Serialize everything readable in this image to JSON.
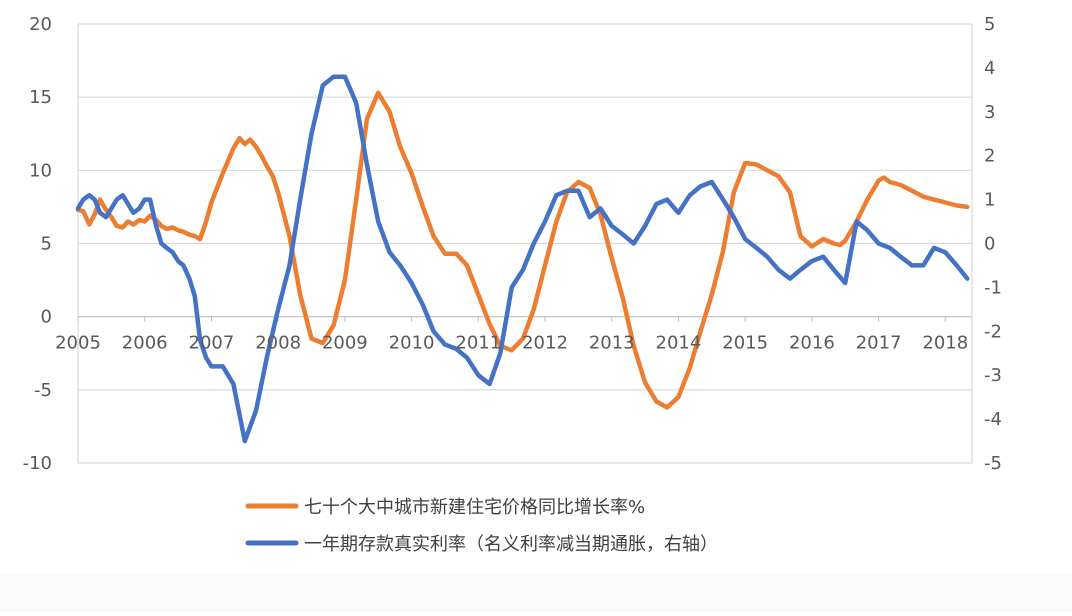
{
  "chart_data": {
    "type": "line",
    "title": "",
    "xlabel": "",
    "ylabel": "",
    "x_ticks": [
      "2005",
      "2006",
      "2007",
      "2008",
      "2009",
      "2010",
      "2011",
      "2012",
      "2013",
      "2014",
      "2015",
      "2016",
      "2017",
      "2018"
    ],
    "x_range": [
      2005.0,
      2018.4
    ],
    "y_left": {
      "range": [
        -10,
        20
      ],
      "ticks": [
        "-10",
        "-5",
        "0",
        "5",
        "10",
        "15",
        "20"
      ]
    },
    "y_right": {
      "range": [
        -5,
        5
      ],
      "ticks": [
        "-5",
        "-4",
        "-3",
        "-2",
        "-1",
        "0",
        "1",
        "2",
        "3",
        "4",
        "5"
      ]
    },
    "grid": "horizontal",
    "legend": "bottom",
    "series": [
      {
        "name": "七十个大中城市新建住宅价格同比增长率%",
        "axis": "left",
        "color": "#ED7D31",
        "x": [
          2005.0,
          2005.08,
          2005.17,
          2005.25,
          2005.33,
          2005.42,
          2005.5,
          2005.58,
          2005.67,
          2005.75,
          2005.83,
          2005.92,
          2006.0,
          2006.08,
          2006.17,
          2006.25,
          2006.33,
          2006.42,
          2006.5,
          2006.58,
          2006.67,
          2006.75,
          2006.83,
          2006.92,
          2007.0,
          2007.17,
          2007.33,
          2007.42,
          2007.5,
          2007.58,
          2007.67,
          2007.75,
          2007.83,
          2007.92,
          2008.0,
          2008.17,
          2008.33,
          2008.5,
          2008.67,
          2008.83,
          2009.0,
          2009.17,
          2009.33,
          2009.5,
          2009.67,
          2009.75,
          2009.83,
          2010.0,
          2010.17,
          2010.33,
          2010.5,
          2010.67,
          2010.83,
          2011.0,
          2011.17,
          2011.33,
          2011.5,
          2011.67,
          2011.83,
          2012.0,
          2012.17,
          2012.33,
          2012.5,
          2012.67,
          2012.83,
          2013.0,
          2013.17,
          2013.33,
          2013.5,
          2013.67,
          2013.83,
          2014.0,
          2014.17,
          2014.33,
          2014.5,
          2014.67,
          2014.75,
          2014.83,
          2015.0,
          2015.17,
          2015.33,
          2015.5,
          2015.67,
          2015.83,
          2016.0,
          2016.17,
          2016.33,
          2016.42,
          2016.5,
          2016.67,
          2016.83,
          2017.0,
          2017.08,
          2017.17,
          2017.33,
          2017.5,
          2017.67,
          2017.83,
          2018.0,
          2018.17,
          2018.33
        ],
        "values": [
          7.3,
          7.2,
          6.3,
          7.0,
          8.0,
          7.3,
          6.8,
          6.2,
          6.1,
          6.5,
          6.3,
          6.6,
          6.5,
          6.9,
          6.6,
          6.2,
          6.0,
          6.1,
          5.9,
          5.8,
          5.6,
          5.5,
          5.3,
          6.5,
          7.8,
          9.8,
          11.5,
          12.2,
          11.8,
          12.1,
          11.6,
          11.0,
          10.3,
          9.6,
          8.5,
          5.5,
          1.5,
          -1.5,
          -1.8,
          -0.6,
          2.5,
          8.0,
          13.5,
          15.3,
          14.0,
          12.8,
          11.6,
          9.8,
          7.5,
          5.5,
          4.3,
          4.3,
          3.5,
          1.5,
          -0.5,
          -2.0,
          -2.3,
          -1.5,
          0.5,
          3.5,
          6.5,
          8.5,
          9.2,
          8.8,
          7.0,
          4.0,
          1.2,
          -2.0,
          -4.5,
          -5.8,
          -6.2,
          -5.5,
          -3.5,
          -1.0,
          1.5,
          4.5,
          6.5,
          8.5,
          10.5,
          10.4,
          10.0,
          9.6,
          8.5,
          5.5,
          4.8,
          5.3,
          5.0,
          4.9,
          5.2,
          6.5,
          8.0,
          9.3,
          9.5,
          9.2,
          9.0,
          8.6,
          8.2,
          8.0,
          7.8,
          7.6,
          7.5
        ],
        "values_note": ""
      },
      {
        "name": "一年期存款真实利率（名义利率减当期通胀，右轴）",
        "axis": "right",
        "color": "#4472C4",
        "x": [
          2005.0,
          2005.08,
          2005.17,
          2005.25,
          2005.33,
          2005.42,
          2005.5,
          2005.58,
          2005.67,
          2005.75,
          2005.83,
          2005.92,
          2006.0,
          2006.08,
          2006.17,
          2006.25,
          2006.33,
          2006.42,
          2006.5,
          2006.58,
          2006.67,
          2006.75,
          2006.83,
          2006.92,
          2007.0,
          2007.17,
          2007.33,
          2007.5,
          2007.67,
          2007.83,
          2008.0,
          2008.17,
          2008.33,
          2008.5,
          2008.67,
          2008.83,
          2009.0,
          2009.17,
          2009.33,
          2009.5,
          2009.67,
          2009.83,
          2010.0,
          2010.17,
          2010.33,
          2010.5,
          2010.67,
          2010.83,
          2011.0,
          2011.17,
          2011.33,
          2011.5,
          2011.67,
          2011.83,
          2012.0,
          2012.17,
          2012.33,
          2012.5,
          2012.67,
          2012.83,
          2013.0,
          2013.17,
          2013.33,
          2013.5,
          2013.67,
          2013.83,
          2014.0,
          2014.17,
          2014.33,
          2014.5,
          2014.67,
          2014.83,
          2015.0,
          2015.17,
          2015.33,
          2015.5,
          2015.67,
          2015.83,
          2016.0,
          2016.17,
          2016.33,
          2016.5,
          2016.67,
          2016.83,
          2017.0,
          2017.17,
          2017.33,
          2017.5,
          2017.67,
          2017.83,
          2018.0,
          2018.17,
          2018.33
        ],
        "values": [
          0.8,
          1.0,
          1.1,
          1.0,
          0.7,
          0.6,
          0.8,
          1.0,
          1.1,
          0.9,
          0.7,
          0.8,
          1.0,
          1.0,
          0.4,
          0.0,
          -0.1,
          -0.2,
          -0.4,
          -0.5,
          -0.8,
          -1.2,
          -2.2,
          -2.6,
          -2.8,
          -2.8,
          -3.2,
          -4.5,
          -3.8,
          -2.6,
          -1.5,
          -0.5,
          1.0,
          2.5,
          3.6,
          3.8,
          3.8,
          3.2,
          1.8,
          0.5,
          -0.2,
          -0.5,
          -0.9,
          -1.4,
          -2.0,
          -2.3,
          -2.4,
          -2.6,
          -3.0,
          -3.2,
          -2.5,
          -1.0,
          -0.6,
          0.0,
          0.5,
          1.1,
          1.2,
          1.2,
          0.6,
          0.8,
          0.4,
          0.2,
          0.0,
          0.4,
          0.9,
          1.0,
          0.7,
          1.1,
          1.3,
          1.4,
          1.0,
          0.6,
          0.1,
          -0.1,
          -0.3,
          -0.6,
          -0.8,
          -0.6,
          -0.4,
          -0.3,
          -0.6,
          -0.9,
          0.5,
          0.3,
          0.0,
          -0.1,
          -0.3,
          -0.5,
          -0.5,
          -0.1,
          -0.2,
          -0.5,
          -0.8
        ],
        "values_note": ""
      }
    ]
  }
}
